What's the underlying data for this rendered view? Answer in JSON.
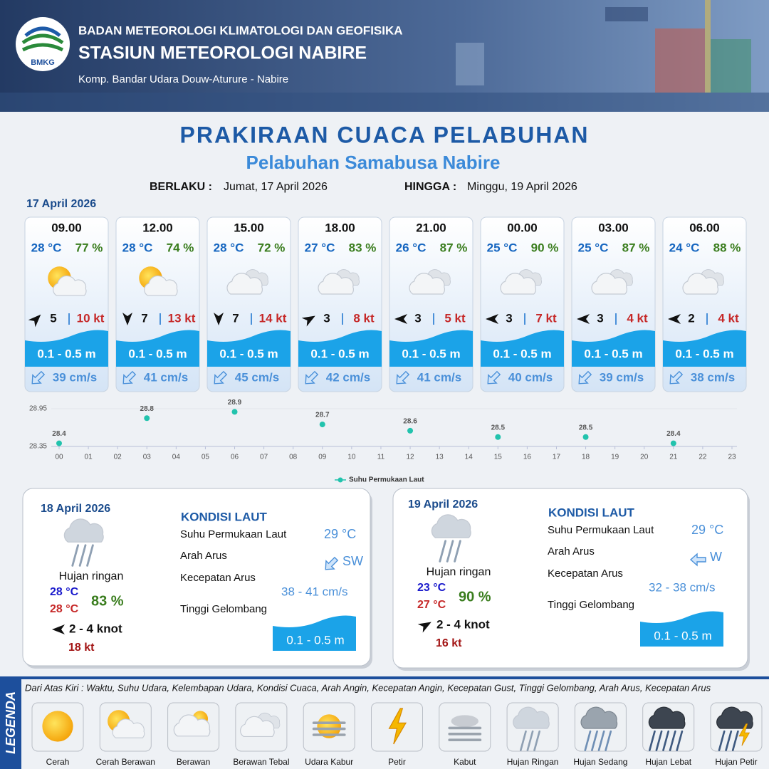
{
  "header": {
    "logo": "BMKG",
    "agency": "BADAN METEOROLOGI KLIMATOLOGI DAN GEOFISIKA",
    "station": "STASIUN METEOROLOGI NABIRE",
    "address": "Komp. Bandar Udara Douw-Aturure - Nabire"
  },
  "title": "PRAKIRAAN CUACA PELABUHAN",
  "subtitle": "Pelabuhan Samabusa Nabire",
  "validity": {
    "from_label": "BERLAKU :",
    "from": "Jumat, 17 April 2026",
    "to_label": "HINGGA :",
    "to": "Minggu, 19 April 2026"
  },
  "day1": {
    "date": "17 April 2026",
    "forecasts": [
      {
        "time": "09.00",
        "temperature": "28 °C",
        "humidity": "77 %",
        "wind_speed": "5",
        "gust": "10 kt",
        "wave": "0.1 - 0.5 m",
        "current": "39 cm/s"
      },
      {
        "time": "12.00",
        "temperature": "28 °C",
        "humidity": "74 %",
        "wind_speed": "7",
        "gust": "13 kt",
        "wave": "0.1 - 0.5 m",
        "current": "41 cm/s"
      },
      {
        "time": "15.00",
        "temperature": "28 °C",
        "humidity": "72 %",
        "wind_speed": "7",
        "gust": "14 kt",
        "wave": "0.1 - 0.5 m",
        "current": "45 cm/s"
      },
      {
        "time": "18.00",
        "temperature": "27 °C",
        "humidity": "83 %",
        "wind_speed": "3",
        "gust": "8 kt",
        "wave": "0.1 - 0.5 m",
        "current": "42 cm/s"
      },
      {
        "time": "21.00",
        "temperature": "26 °C",
        "humidity": "87 %",
        "wind_speed": "3",
        "gust": "5 kt",
        "wave": "0.1 - 0.5 m",
        "current": "41 cm/s"
      },
      {
        "time": "00.00",
        "temperature": "25 °C",
        "humidity": "90 %",
        "wind_speed": "3",
        "gust": "7 kt",
        "wave": "0.1 - 0.5 m",
        "current": "40 cm/s"
      },
      {
        "time": "03.00",
        "temperature": "25 °C",
        "humidity": "87 %",
        "wind_speed": "3",
        "gust": "4 kt",
        "wave": "0.1 - 0.5 m",
        "current": "39 cm/s"
      },
      {
        "time": "06.00",
        "temperature": "24 °C",
        "humidity": "88 %",
        "wind_speed": "2",
        "gust": "4 kt",
        "wave": "0.1 - 0.5 m",
        "current": "38 cm/s"
      }
    ]
  },
  "chart_data": {
    "type": "scatter",
    "x": [
      0,
      3,
      6,
      9,
      12,
      15,
      18,
      21
    ],
    "series": [
      {
        "name": "Suhu Permukaan Laut",
        "color": "#22c3ad",
        "values": [
          28.4,
          28.8,
          28.9,
          28.7,
          28.6,
          28.5,
          28.5,
          28.4
        ]
      }
    ],
    "xlim": [
      0,
      23
    ],
    "xticks": [
      {
        "value": 0,
        "label": "00"
      },
      {
        "value": 1,
        "label": "01"
      },
      {
        "value": 2,
        "label": "02"
      },
      {
        "value": 3,
        "label": "03"
      },
      {
        "value": 4,
        "label": "04"
      },
      {
        "value": 5,
        "label": "05"
      },
      {
        "value": 6,
        "label": "06"
      },
      {
        "value": 7,
        "label": "07"
      },
      {
        "value": 8,
        "label": "08"
      },
      {
        "value": 9,
        "label": "09"
      },
      10,
      11,
      12,
      13,
      14,
      15,
      16,
      17,
      18,
      19,
      20,
      21,
      22,
      23
    ],
    "ylim": [
      28.35,
      28.95
    ],
    "yticks": [
      28.35,
      28.95
    ],
    "grid": true,
    "legend": "bottom"
  },
  "panels": [
    {
      "date": "18 April 2026",
      "condition": "Hujan ringan",
      "temp_min": "28 °C",
      "temp_max": "28 °C",
      "humidity": "83 %",
      "wind": "2  - 4 knot",
      "gust": "18 kt",
      "sea_title": "KONDISI LAUT",
      "sst_label": "Suhu Permukaan Laut",
      "sst": "29 °C",
      "current_dir_label": "Arah Arus",
      "current_dir": "SW",
      "current_speed_label": "Kecepatan Arus",
      "current_speed": "38 - 41 cm/s",
      "wave_label": "Tinggi Gelombang",
      "wave": "0.1 - 0.5 m"
    },
    {
      "date": "19 April 2026",
      "condition": "Hujan ringan",
      "temp_min": "23 °C",
      "temp_max": "27 °C",
      "humidity": "90 %",
      "wind": "2 - 4 knot",
      "gust": "16 kt",
      "sea_title": "KONDISI LAUT",
      "sst_label": "Suhu Permukaan Laut",
      "sst": "29 °C",
      "current_dir_label": "Arah Arus",
      "current_dir": "W",
      "current_speed_label": "Kecepatan Arus",
      "current_speed": "32 - 38 cm/s",
      "wave_label": "Tinggi Gelombang",
      "wave": "0.1 - 0.5 m"
    }
  ],
  "legend": {
    "title": "LEGENDA",
    "description": "Dari Atas Kiri : Waktu, Suhu Udara, Kelembapan Udara, Kondisi Cuaca, Arah Angin, Kecepatan Angin, Kecepatan Gust, Tinggi Gelombang, Arah Arus, Kecepatan Arus",
    "items": [
      "Cerah",
      "Cerah Berawan",
      "Berawan",
      "Berawan Tebal",
      "Udara Kabur",
      "Petir",
      "Kabut",
      "Hujan Ringan",
      "Hujan Sedang",
      "Hujan Lebat",
      "Hujan Petir"
    ]
  }
}
